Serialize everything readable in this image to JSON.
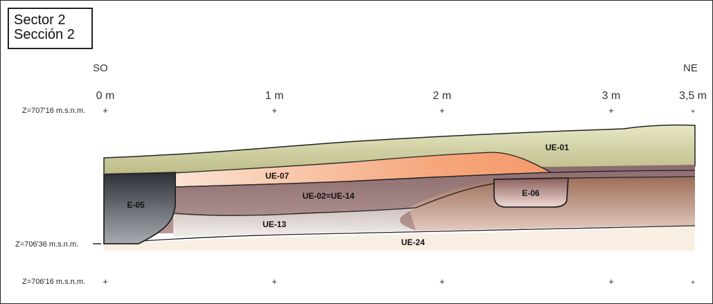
{
  "title": {
    "line1": "Sector 2",
    "line2": "Sección 2"
  },
  "orientation": {
    "left": "SO",
    "right": "NE"
  },
  "distance_marks": [
    "0 m",
    "1 m",
    "2 m",
    "3 m",
    "3,5 m"
  ],
  "elevations": {
    "top": "Z=707'16 m.s.n.m.",
    "middle": "Z=706'36 m.s.n.m.",
    "bottom": "Z=706'16 m.s.n.m."
  },
  "units": {
    "ue01": "UE-01",
    "ue07": "UE-07",
    "ue02": "UE-02=UE-14",
    "ue13": "UE-13",
    "ue24": "UE-24",
    "e05": "E-05",
    "e06": "E-06"
  },
  "colors": {
    "ue01": "#c9c89a",
    "ue07": "#f4a882",
    "ue02": "#9a7a7c",
    "ue13": "#ddd3cf",
    "ue24": "#f7efe3",
    "e05": "#5b5e67",
    "e06": "#b98f8b"
  }
}
